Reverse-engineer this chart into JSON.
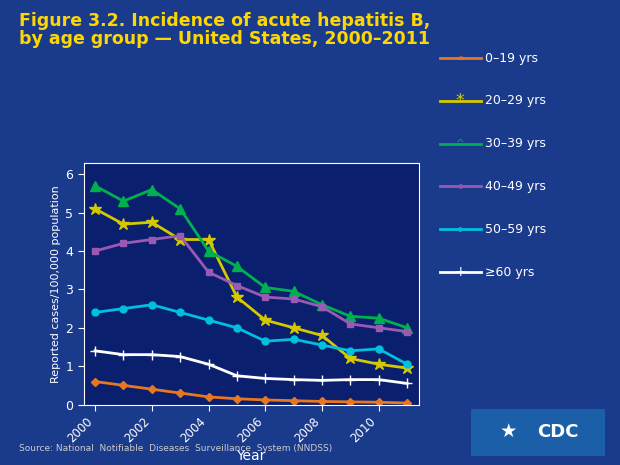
{
  "title_line1": "Figure 3.2. Incidence of acute hepatitis B,",
  "title_line2": "by age group — United States, 2000–2011",
  "xlabel": "Year",
  "ylabel": "Reported cases/100,000 population",
  "source": "Source: National  Notifiable  Diseases  Surveillance  System (NNDSS)",
  "years": [
    2000,
    2001,
    2002,
    2003,
    2004,
    2005,
    2006,
    2007,
    2008,
    2009,
    2010,
    2011
  ],
  "series": {
    "0–19 yrs": [
      0.6,
      0.5,
      0.4,
      0.3,
      0.2,
      0.15,
      0.12,
      0.1,
      0.08,
      0.07,
      0.06,
      0.04
    ],
    "20–29 yrs": [
      5.1,
      4.7,
      4.75,
      4.3,
      4.3,
      2.8,
      2.2,
      2.0,
      1.8,
      1.2,
      1.05,
      0.95
    ],
    "30–39 yrs": [
      5.7,
      5.3,
      5.6,
      5.1,
      4.0,
      3.6,
      3.05,
      2.95,
      2.6,
      2.3,
      2.25,
      2.0
    ],
    "40–49 yrs": [
      4.0,
      4.2,
      4.3,
      4.4,
      3.45,
      3.1,
      2.8,
      2.75,
      2.55,
      2.1,
      2.0,
      1.9
    ],
    "50–59 yrs": [
      2.4,
      2.5,
      2.6,
      2.4,
      2.2,
      2.0,
      1.65,
      1.7,
      1.55,
      1.4,
      1.45,
      1.05
    ],
    "≥60 yrs": [
      1.4,
      1.3,
      1.3,
      1.25,
      1.05,
      0.75,
      0.68,
      0.65,
      0.63,
      0.65,
      0.65,
      0.55
    ]
  },
  "colors": {
    "0–19 yrs": "#E87722",
    "20–29 yrs": "#D4C800",
    "30–29 yrs": "#00B050",
    "30–39 yrs": "#00B050",
    "40–49 yrs": "#9B59B6",
    "50–59 yrs": "#00BFDF",
    "≥60 yrs": "#FFFFFF"
  },
  "markers": {
    "0–19 yrs": "D",
    "20–29 yrs": "*",
    "30–39 yrs": "^",
    "40–49 yrs": "s",
    "50–59 yrs": "o",
    "≥60 yrs": "+"
  },
  "marker_sizes": {
    "0–19 yrs": 4,
    "20–29 yrs": 9,
    "30–39 yrs": 7,
    "40–49 yrs": 5,
    "50–59 yrs": 5,
    "≥60 yrs": 7
  },
  "ylim": [
    0,
    6.3
  ],
  "yticks": [
    0,
    1,
    2,
    3,
    4,
    5,
    6
  ],
  "bg_outer": "#1a3a8c",
  "bg_plot": "#0a1f6e",
  "title_color": "#FFD700",
  "axis_label_color": "#FFFFFF",
  "tick_color": "#FFFFFF",
  "legend_text_color": "#FFFFFF"
}
